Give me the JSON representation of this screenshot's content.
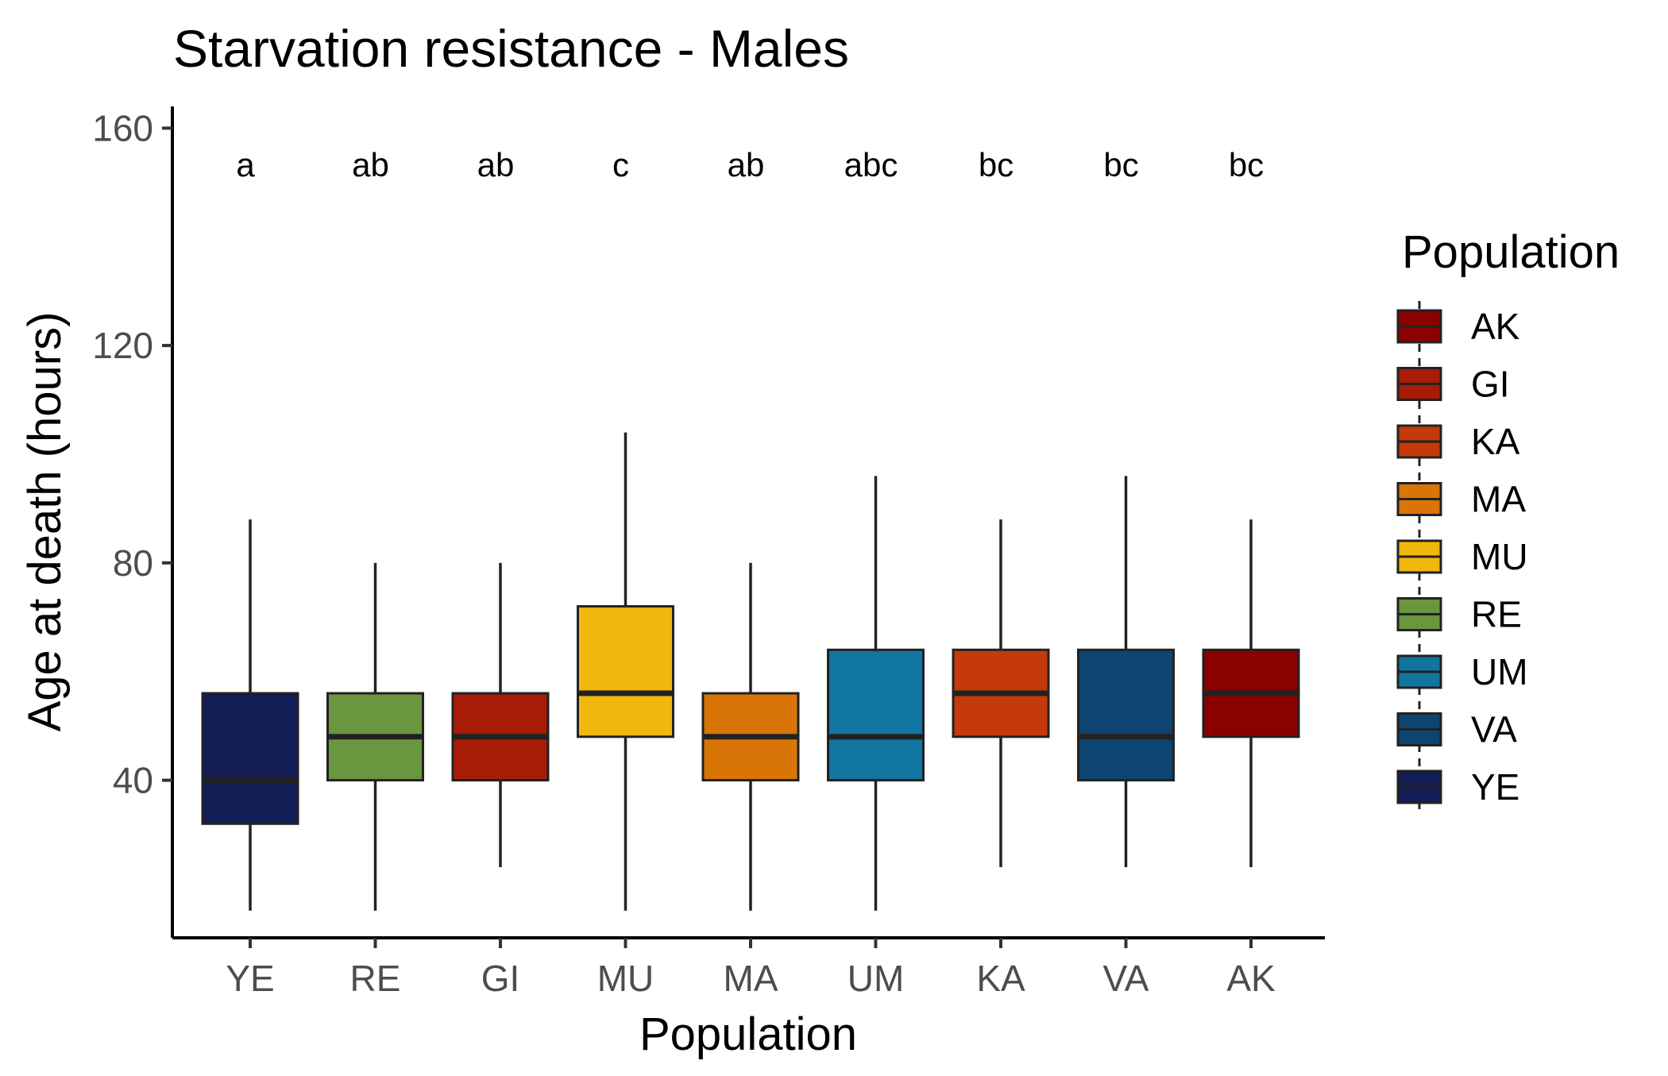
{
  "chart_data": {
    "type": "boxplot",
    "title": "Starvation resistance - Males",
    "xlabel": "Population",
    "ylabel": "Age at death (hours)",
    "ylim": [
      11,
      164
    ],
    "yticks": [
      40,
      80,
      120,
      160
    ],
    "grid": false,
    "legend": {
      "title": "Population",
      "position": "right",
      "entries": [
        {
          "label": "AK",
          "color": "#8B0000"
        },
        {
          "label": "GI",
          "color": "#A81C07"
        },
        {
          "label": "KA",
          "color": "#C43A0A"
        },
        {
          "label": "MA",
          "color": "#D97506"
        },
        {
          "label": "MU",
          "color": "#F2B70C"
        },
        {
          "label": "RE",
          "color": "#6A9640"
        },
        {
          "label": "UM",
          "color": "#1075A0"
        },
        {
          "label": "VA",
          "color": "#0E4470"
        },
        {
          "label": "YE",
          "color": "#131D55"
        }
      ]
    },
    "categories": [
      "YE",
      "RE",
      "GI",
      "MU",
      "MA",
      "UM",
      "KA",
      "VA",
      "AK"
    ],
    "boxes": [
      {
        "label": "YE",
        "whisker_low": 16,
        "q1": 32,
        "median": 40,
        "q3": 56,
        "whisker_high": 88,
        "sig": "a",
        "color": "#131D55"
      },
      {
        "label": "RE",
        "whisker_low": 16,
        "q1": 40,
        "median": 48,
        "q3": 56,
        "whisker_high": 80,
        "sig": "ab",
        "color": "#6A9640"
      },
      {
        "label": "GI",
        "whisker_low": 24,
        "q1": 40,
        "median": 48,
        "q3": 56,
        "whisker_high": 80,
        "sig": "ab",
        "color": "#A81C07"
      },
      {
        "label": "MU",
        "whisker_low": 16,
        "q1": 48,
        "median": 56,
        "q3": 72,
        "whisker_high": 104,
        "sig": "c",
        "color": "#F2B70C"
      },
      {
        "label": "MA",
        "whisker_low": 16,
        "q1": 40,
        "median": 48,
        "q3": 56,
        "whisker_high": 80,
        "sig": "ab",
        "color": "#D97506"
      },
      {
        "label": "UM",
        "whisker_low": 16,
        "q1": 40,
        "median": 48,
        "q3": 64,
        "whisker_high": 96,
        "sig": "abc",
        "color": "#1075A0"
      },
      {
        "label": "KA",
        "whisker_low": 24,
        "q1": 48,
        "median": 56,
        "q3": 64,
        "whisker_high": 88,
        "sig": "bc",
        "color": "#C43A0A"
      },
      {
        "label": "VA",
        "whisker_low": 24,
        "q1": 40,
        "median": 48,
        "q3": 64,
        "whisker_high": 96,
        "sig": "bc",
        "color": "#0E4470"
      },
      {
        "label": "AK",
        "whisker_low": 24,
        "q1": 48,
        "median": 56,
        "q3": 64,
        "whisker_high": 88,
        "sig": "bc",
        "color": "#8B0000"
      }
    ]
  }
}
